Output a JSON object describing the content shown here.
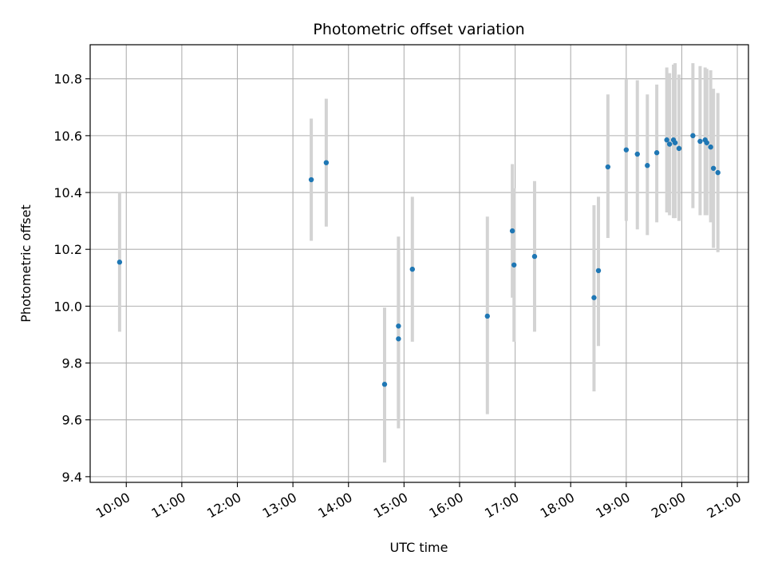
{
  "chart_data": {
    "type": "scatter",
    "title": "Photometric offset variation",
    "xlabel": "UTC time",
    "ylabel": "Photometric offset",
    "x_unit": "hours UTC",
    "xlim": [
      9.35,
      21.2
    ],
    "ylim": [
      9.38,
      10.92
    ],
    "x_ticks": [
      10,
      11,
      12,
      13,
      14,
      15,
      16,
      17,
      18,
      19,
      20,
      21
    ],
    "x_tick_labels": [
      "10:00",
      "11:00",
      "12:00",
      "13:00",
      "14:00",
      "15:00",
      "16:00",
      "17:00",
      "18:00",
      "19:00",
      "20:00",
      "21:00"
    ],
    "y_ticks": [
      9.4,
      9.6,
      9.8,
      10.0,
      10.2,
      10.4,
      10.6,
      10.8
    ],
    "y_tick_labels": [
      "9.4",
      "9.6",
      "9.8",
      "10.0",
      "10.2",
      "10.4",
      "10.6",
      "10.8"
    ],
    "grid": true,
    "colors": {
      "point": "#1f77b4",
      "errorbar": "#d3d3d3",
      "grid": "#b0b0b0"
    },
    "points": [
      {
        "x": 9.88,
        "y": 10.155,
        "ylo": 9.91,
        "yhi": 10.4
      },
      {
        "x": 13.33,
        "y": 10.445,
        "ylo": 10.23,
        "yhi": 10.66
      },
      {
        "x": 13.6,
        "y": 10.505,
        "ylo": 10.28,
        "yhi": 10.73
      },
      {
        "x": 14.65,
        "y": 9.725,
        "ylo": 9.45,
        "yhi": 9.995
      },
      {
        "x": 14.9,
        "y": 9.93,
        "ylo": 9.61,
        "yhi": 10.245
      },
      {
        "x": 14.9,
        "y": 9.885,
        "ylo": 9.57,
        "yhi": 10.19
      },
      {
        "x": 15.15,
        "y": 10.13,
        "ylo": 9.875,
        "yhi": 10.385
      },
      {
        "x": 16.5,
        "y": 9.965,
        "ylo": 9.62,
        "yhi": 10.315
      },
      {
        "x": 16.95,
        "y": 10.265,
        "ylo": 10.03,
        "yhi": 10.5
      },
      {
        "x": 16.98,
        "y": 10.145,
        "ylo": 9.875,
        "yhi": 10.415
      },
      {
        "x": 17.35,
        "y": 10.175,
        "ylo": 9.91,
        "yhi": 10.44
      },
      {
        "x": 18.42,
        "y": 10.03,
        "ylo": 9.7,
        "yhi": 10.355
      },
      {
        "x": 18.5,
        "y": 10.125,
        "ylo": 9.86,
        "yhi": 10.385
      },
      {
        "x": 18.67,
        "y": 10.49,
        "ylo": 10.24,
        "yhi": 10.745
      },
      {
        "x": 19.0,
        "y": 10.55,
        "ylo": 10.3,
        "yhi": 10.8
      },
      {
        "x": 19.2,
        "y": 10.535,
        "ylo": 10.27,
        "yhi": 10.795
      },
      {
        "x": 19.38,
        "y": 10.495,
        "ylo": 10.25,
        "yhi": 10.745
      },
      {
        "x": 19.55,
        "y": 10.54,
        "ylo": 10.295,
        "yhi": 10.78
      },
      {
        "x": 19.73,
        "y": 10.585,
        "ylo": 10.33,
        "yhi": 10.84
      },
      {
        "x": 19.78,
        "y": 10.57,
        "ylo": 10.32,
        "yhi": 10.82
      },
      {
        "x": 19.85,
        "y": 10.585,
        "ylo": 10.31,
        "yhi": 10.85
      },
      {
        "x": 19.88,
        "y": 10.575,
        "ylo": 10.31,
        "yhi": 10.855
      },
      {
        "x": 19.95,
        "y": 10.555,
        "ylo": 10.3,
        "yhi": 10.815
      },
      {
        "x": 20.2,
        "y": 10.6,
        "ylo": 10.345,
        "yhi": 10.855
      },
      {
        "x": 20.33,
        "y": 10.58,
        "ylo": 10.32,
        "yhi": 10.845
      },
      {
        "x": 20.42,
        "y": 10.585,
        "ylo": 10.32,
        "yhi": 10.84
      },
      {
        "x": 20.45,
        "y": 10.575,
        "ylo": 10.32,
        "yhi": 10.835
      },
      {
        "x": 20.52,
        "y": 10.56,
        "ylo": 10.295,
        "yhi": 10.83
      },
      {
        "x": 20.57,
        "y": 10.485,
        "ylo": 10.205,
        "yhi": 10.765
      },
      {
        "x": 20.65,
        "y": 10.47,
        "ylo": 10.19,
        "yhi": 10.75
      }
    ]
  }
}
